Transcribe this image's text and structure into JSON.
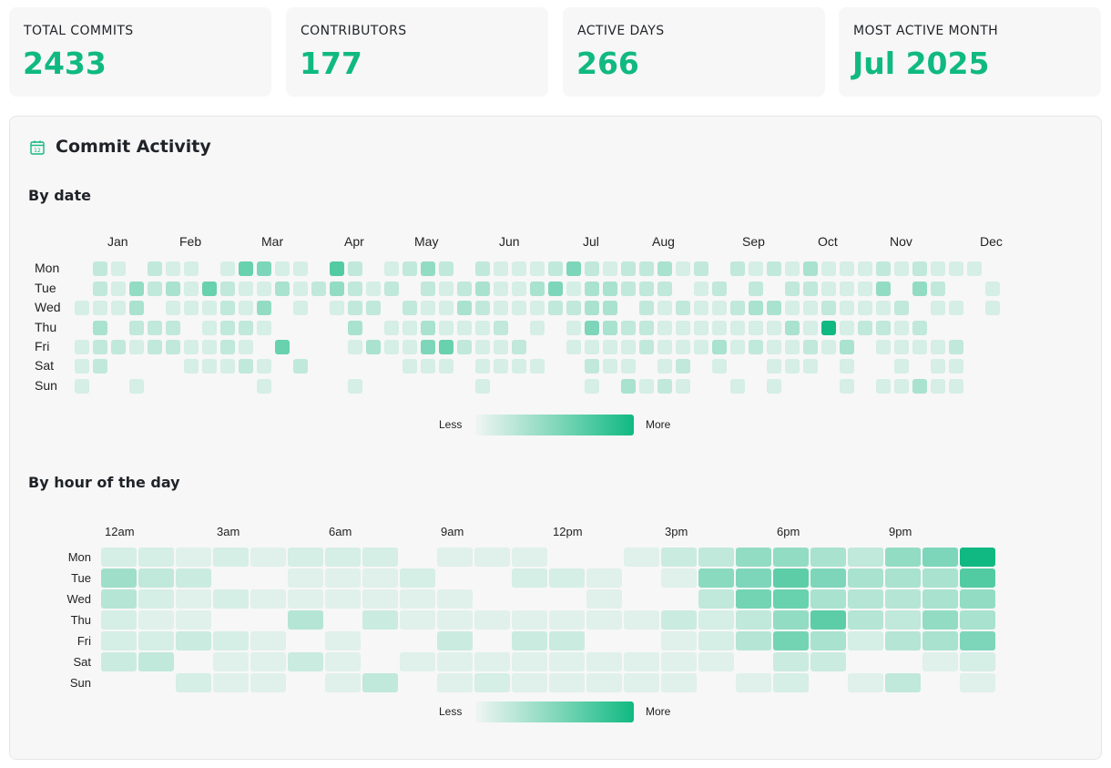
{
  "stats": [
    {
      "label": "TOTAL COMMITS",
      "value": "2433"
    },
    {
      "label": "CONTRIBUTORS",
      "value": "177"
    },
    {
      "label": "ACTIVE DAYS",
      "value": "266"
    },
    {
      "label": "MOST ACTIVE MONTH",
      "value": "Jul 2025"
    }
  ],
  "panel": {
    "title": "Commit Activity",
    "icon": "calendar-icon"
  },
  "colors": {
    "accent": "#10b981",
    "panel_bg": "#f7f7f7"
  },
  "legend": {
    "less": "Less",
    "more": "More"
  },
  "chart_data": [
    {
      "type": "heatmap",
      "title": "By date",
      "x_tick_labels": [
        "Jan",
        "Feb",
        "Mar",
        "Apr",
        "May",
        "Jun",
        "Jul",
        "Aug",
        "Sep",
        "Oct",
        "Nov",
        "Dec"
      ],
      "y_labels": [
        "Mon",
        "Tue",
        "Wed",
        "Thu",
        "Fri",
        "Sat",
        "Sun"
      ],
      "value_scale": "relative intensity 0-10 (estimated)",
      "values": [
        [
          0,
          2,
          1,
          0,
          2,
          1,
          1,
          0,
          1,
          6,
          5,
          1,
          1,
          0,
          7,
          2,
          0,
          1,
          2,
          4,
          2,
          0,
          2,
          1,
          1,
          1,
          2,
          5,
          2,
          1,
          2,
          2,
          3,
          1,
          2,
          0,
          2,
          1,
          2,
          1,
          3,
          1,
          1,
          1,
          2,
          1,
          2,
          1,
          1,
          1,
          0
        ],
        [
          0,
          2,
          1,
          4,
          2,
          3,
          1,
          6,
          2,
          1,
          1,
          3,
          1,
          2,
          4,
          2,
          1,
          2,
          0,
          2,
          1,
          2,
          3,
          1,
          1,
          3,
          5,
          1,
          3,
          3,
          2,
          2,
          2,
          0,
          1,
          2,
          0,
          2,
          0,
          2,
          2,
          1,
          1,
          1,
          4,
          0,
          4,
          2,
          0,
          0,
          1
        ],
        [
          1,
          1,
          1,
          3,
          0,
          1,
          1,
          1,
          2,
          1,
          4,
          0,
          1,
          0,
          1,
          2,
          2,
          0,
          2,
          1,
          1,
          3,
          2,
          1,
          1,
          1,
          2,
          2,
          3,
          3,
          0,
          2,
          1,
          2,
          1,
          1,
          2,
          3,
          3,
          1,
          1,
          2,
          1,
          1,
          1,
          2,
          0,
          1,
          1,
          0,
          1
        ],
        [
          0,
          3,
          0,
          2,
          2,
          2,
          0,
          1,
          2,
          2,
          1,
          0,
          0,
          0,
          0,
          3,
          0,
          1,
          1,
          3,
          1,
          1,
          1,
          2,
          0,
          1,
          0,
          1,
          5,
          3,
          2,
          2,
          1,
          1,
          1,
          1,
          1,
          1,
          1,
          3,
          1,
          10,
          1,
          2,
          2,
          1,
          2,
          0,
          0,
          0,
          0
        ],
        [
          1,
          2,
          2,
          1,
          2,
          2,
          1,
          1,
          2,
          1,
          0,
          6,
          0,
          0,
          0,
          1,
          3,
          1,
          1,
          5,
          6,
          2,
          1,
          1,
          2,
          0,
          0,
          1,
          1,
          1,
          1,
          2,
          1,
          1,
          1,
          3,
          1,
          2,
          1,
          1,
          2,
          1,
          3,
          0,
          1,
          1,
          1,
          1,
          2,
          0,
          0
        ],
        [
          1,
          2,
          0,
          0,
          0,
          0,
          1,
          1,
          1,
          2,
          1,
          0,
          2,
          0,
          0,
          0,
          0,
          0,
          1,
          1,
          1,
          0,
          1,
          1,
          1,
          1,
          0,
          0,
          2,
          1,
          1,
          0,
          1,
          2,
          0,
          1,
          0,
          0,
          1,
          1,
          1,
          0,
          1,
          0,
          0,
          1,
          0,
          1,
          1,
          0,
          0
        ],
        [
          1,
          0,
          0,
          1,
          0,
          0,
          0,
          0,
          0,
          0,
          1,
          0,
          0,
          0,
          0,
          1,
          0,
          0,
          0,
          0,
          0,
          0,
          1,
          0,
          0,
          0,
          0,
          0,
          1,
          0,
          3,
          1,
          2,
          1,
          0,
          0,
          1,
          0,
          1,
          0,
          0,
          0,
          1,
          0,
          1,
          1,
          3,
          1,
          1,
          0,
          0
        ]
      ]
    },
    {
      "type": "heatmap",
      "title": "By hour of the day",
      "x_tick_labels": [
        "12am",
        "3am",
        "6am",
        "9am",
        "12pm",
        "3pm",
        "6pm",
        "9pm"
      ],
      "y_labels": [
        "Mon",
        "Tue",
        "Wed",
        "Thu",
        "Fri",
        "Sat",
        "Sun"
      ],
      "value_scale": "relative intensity 0-10 (estimated)",
      "values": [
        [
          1,
          1,
          0.5,
          1,
          0.5,
          1,
          1,
          1,
          0,
          0.5,
          0.5,
          0.5,
          0,
          0,
          0.5,
          1.5,
          2,
          4,
          4,
          3,
          2,
          4,
          5,
          10
        ],
        [
          3.5,
          2,
          1.5,
          0,
          0,
          0.5,
          0.5,
          0.5,
          1,
          0,
          0,
          1,
          1,
          0.5,
          0,
          0.5,
          4.5,
          5,
          6.5,
          5,
          3,
          3,
          3,
          7
        ],
        [
          2.5,
          1,
          0.5,
          1,
          0.5,
          0.5,
          0.5,
          0.5,
          0.5,
          0.5,
          0,
          0,
          0,
          0.5,
          0,
          0,
          2,
          5.5,
          6,
          3,
          2.5,
          2.5,
          3,
          4
        ],
        [
          1,
          0.5,
          0.5,
          0,
          0,
          2.5,
          0,
          1.5,
          0.5,
          0.5,
          0.5,
          0.5,
          0.5,
          0.5,
          0.5,
          1.5,
          1,
          2,
          4,
          6.5,
          2.5,
          2,
          4,
          3
        ],
        [
          1,
          1,
          1.5,
          1,
          0.5,
          0,
          0.5,
          0,
          0,
          1.5,
          0,
          1.5,
          1.5,
          0,
          0,
          0.5,
          1,
          2.5,
          5.5,
          3,
          1,
          2.5,
          3,
          5
        ],
        [
          1.5,
          2,
          0,
          0.5,
          0.5,
          1.5,
          0.5,
          0,
          0.5,
          0.5,
          0.5,
          0.5,
          0.5,
          0.5,
          0.5,
          0.5,
          0.5,
          0,
          1.5,
          1.5,
          0,
          0,
          0.5,
          1
        ],
        [
          0,
          0,
          1,
          0.5,
          0.5,
          0,
          0.5,
          2,
          0,
          0.5,
          1,
          0.5,
          0.5,
          0.5,
          0.5,
          0.5,
          0,
          0.5,
          1,
          0,
          0.5,
          2,
          0,
          0.5
        ]
      ]
    }
  ]
}
